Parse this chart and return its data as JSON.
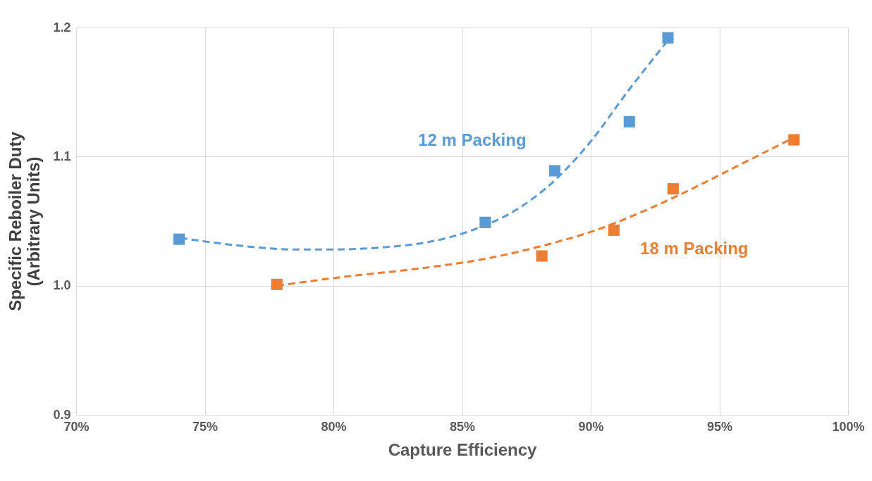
{
  "chart_data": {
    "type": "scatter",
    "xlabel": "Capture Efficiency",
    "ylabel": "Specific Reboiler Duty\n(Arbitrary Units)",
    "xlim": [
      70,
      100
    ],
    "xticks": [
      {
        "value": 70,
        "label": "70%"
      },
      {
        "value": 75,
        "label": "75%"
      },
      {
        "value": 80,
        "label": "80%"
      },
      {
        "value": 85,
        "label": "85%"
      },
      {
        "value": 90,
        "label": "90%"
      },
      {
        "value": 95,
        "label": "95%"
      },
      {
        "value": 100,
        "label": "100%"
      }
    ],
    "ylim": [
      0.9,
      1.2
    ],
    "yticks": [
      {
        "value": 0.9,
        "label": "0.9"
      },
      {
        "value": 1.0,
        "label": "1.0"
      },
      {
        "value": 1.1,
        "label": "1.1"
      },
      {
        "value": 1.2,
        "label": "1.2"
      }
    ],
    "grid": true,
    "marker": "square",
    "series": [
      {
        "name": "12 m Packing",
        "color": "#5b9bd5",
        "x": [
          74.0,
          85.9,
          88.6,
          91.5,
          93.0
        ],
        "values": [
          1.036,
          1.049,
          1.089,
          1.127,
          1.192
        ]
      },
      {
        "type": "line",
        "color": "#5b9bd5",
        "line_style": "dashed",
        "marker": "none",
        "x": [
          74.05,
          76.36,
          78.55,
          79.92,
          82.11,
          83.75,
          85.4,
          87.04,
          88.68,
          90.05,
          91.42,
          92.96
        ],
        "values": [
          1.037,
          1.031,
          1.028,
          1.028,
          1.03,
          1.034,
          1.043,
          1.058,
          1.083,
          1.113,
          1.15,
          1.189
        ]
      },
      {
        "name": "18 m Packing",
        "color": "#ed7d31",
        "x": [
          77.8,
          88.1,
          90.9,
          93.2,
          97.9
        ],
        "values": [
          1.001,
          1.023,
          1.043,
          1.075,
          1.113
        ]
      },
      {
        "type": "line",
        "color": "#ed7d31",
        "line_style": "dashed",
        "marker": "none",
        "x": [
          77.81,
          80.47,
          83.21,
          85.95,
          88.14,
          90.05,
          91.97,
          93.62,
          95.53,
          97.92
        ],
        "values": [
          1.0,
          1.007,
          1.013,
          1.021,
          1.031,
          1.042,
          1.057,
          1.072,
          1.091,
          1.115
        ]
      }
    ]
  }
}
